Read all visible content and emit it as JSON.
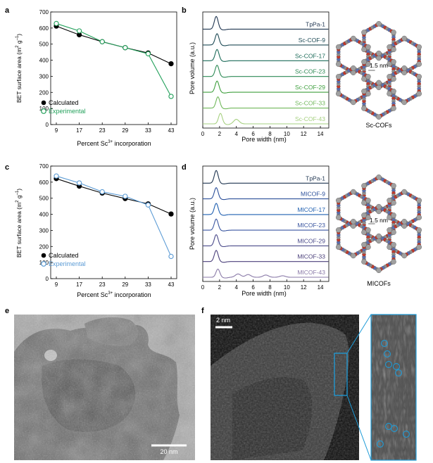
{
  "panels": {
    "a": {
      "letter": "a",
      "chart_data": {
        "type": "line",
        "categories": [
          "9",
          "17",
          "23",
          "29",
          "33",
          "43"
        ],
        "series": [
          {
            "name": "Calculated",
            "values": [
              612,
              558,
              515,
              478,
              445,
              378
            ],
            "color": "#000000",
            "marker": "filled"
          },
          {
            "name": "Experimental",
            "values": [
              628,
              582,
              515,
              478,
              440,
              175
            ],
            "color": "#22a05a",
            "marker": "open"
          }
        ],
        "xlabel": "Percent Sc",
        "xlabel_sup": "3+",
        "xlabel_rest": " incorporation",
        "ylabel": "BET surface area (m",
        "ylabel_sup1": "2",
        "ylabel_mid": " g",
        "ylabel_sup2": "–1",
        "ylabel_end": ")",
        "ylim": [
          0,
          700
        ],
        "yticks": [
          "0",
          "100",
          "200",
          "300",
          "400",
          "500",
          "600",
          "700"
        ]
      }
    },
    "b": {
      "letter": "b",
      "chart_data": {
        "type": "line",
        "xlabel": "Pore width (nm)",
        "ylabel": "Pore volume (a.u.)",
        "xlim": [
          0,
          15
        ],
        "xticks": [
          "0",
          "2",
          "4",
          "6",
          "8",
          "10",
          "12",
          "14"
        ],
        "series": [
          {
            "name": "TpPa-1",
            "peak_x": 1.6,
            "peak_height": 0.85,
            "color": "#1f3550",
            "label_color": "#1f3550"
          },
          {
            "name": "Sc-COF-9",
            "peak_x": 1.7,
            "peak_height": 0.75,
            "color": "#1d4a55",
            "label_color": "#1d4a55"
          },
          {
            "name": "Sc-COF-17",
            "peak_x": 1.7,
            "peak_height": 0.75,
            "color": "#1a6a58",
            "label_color": "#1a6a58"
          },
          {
            "name": "Sc-COF-23",
            "peak_x": 1.7,
            "peak_height": 0.75,
            "color": "#2d8a55",
            "label_color": "#2d8a55"
          },
          {
            "name": "Sc-COF-29",
            "peak_x": 1.7,
            "peak_height": 0.75,
            "color": "#3f9f3e",
            "label_color": "#3f9f3e"
          },
          {
            "name": "Sc-COF-33",
            "peak_x": 1.8,
            "peak_height": 0.75,
            "color": "#70b85a",
            "label_color": "#70b85a"
          },
          {
            "name": "Sc-COF-43",
            "peak_x": 2.1,
            "peak_height": 0.7,
            "color": "#a6d080",
            "label_color": "#a6d080",
            "extra_peaks": [
              [
                4.0,
                0.3
              ]
            ]
          }
        ]
      },
      "structure_label": "Sc-COFs",
      "pore_label": "1.5 nm"
    },
    "c": {
      "letter": "c",
      "chart_data": {
        "type": "line",
        "categories": [
          "9",
          "17",
          "23",
          "29",
          "33",
          "43"
        ],
        "series": [
          {
            "name": "Calculated",
            "values": [
              622,
              575,
              532,
              498,
              465,
              402
            ],
            "color": "#000000",
            "marker": "filled"
          },
          {
            "name": "Experimental",
            "values": [
              638,
              595,
              540,
              512,
              458,
              138
            ],
            "color": "#5b9bd5",
            "marker": "open"
          }
        ],
        "xlabel": "Percent Sc",
        "xlabel_sup": "3+",
        "xlabel_rest": " incorporation",
        "ylabel": "BET surface area (m",
        "ylabel_sup1": "2",
        "ylabel_mid": " g",
        "ylabel_sup2": "–1",
        "ylabel_end": ")",
        "ylim": [
          0,
          700
        ],
        "yticks": [
          "0",
          "100",
          "200",
          "300",
          "400",
          "500",
          "600",
          "700"
        ]
      }
    },
    "d": {
      "letter": "d",
      "chart_data": {
        "type": "line",
        "xlabel": "Pore width (nm)",
        "ylabel": "Pore volume (a.u.)",
        "xlim": [
          0,
          15
        ],
        "xticks": [
          "0",
          "2",
          "4",
          "6",
          "8",
          "10",
          "12",
          "14"
        ],
        "series": [
          {
            "name": "TpPa-1",
            "peak_x": 1.6,
            "peak_height": 0.85,
            "color": "#1f3550",
            "label_color": "#1f3550"
          },
          {
            "name": "MICOF-9",
            "peak_x": 1.6,
            "peak_height": 0.75,
            "color": "#2b4f9a",
            "label_color": "#2b4f9a"
          },
          {
            "name": "MICOF-17",
            "peak_x": 1.6,
            "peak_height": 0.75,
            "color": "#1f5fb0",
            "label_color": "#1f5fb0"
          },
          {
            "name": "MICOF-23",
            "peak_x": 1.6,
            "peak_height": 0.75,
            "color": "#3a56a0",
            "label_color": "#3a56a0"
          },
          {
            "name": "MICOF-29",
            "peak_x": 1.6,
            "peak_height": 0.75,
            "color": "#4a4a8a",
            "label_color": "#4a4a8a"
          },
          {
            "name": "MICOF-33",
            "peak_x": 1.6,
            "peak_height": 0.75,
            "color": "#4a3f7a",
            "label_color": "#4a3f7a"
          },
          {
            "name": "MICOF-43",
            "peak_x": 1.8,
            "peak_height": 0.55,
            "color": "#8a7aa8",
            "label_color": "#8a7aa8",
            "extra_peaks": [
              [
                4.2,
                0.22
              ],
              [
                5.4,
                0.18
              ],
              [
                7.5,
                0.15
              ],
              [
                9.5,
                0.1
              ]
            ]
          }
        ]
      },
      "structure_label": "MICOFs",
      "pore_label": "1.5 nm"
    },
    "e": {
      "letter": "e",
      "scale_label": "20 nm"
    },
    "f": {
      "letter": "f",
      "scale_label": "2 nm"
    }
  },
  "colors": {
    "sc_accent": "#22a05a",
    "mi_accent": "#5b9bd5",
    "highlight": "#1e9bd7"
  }
}
